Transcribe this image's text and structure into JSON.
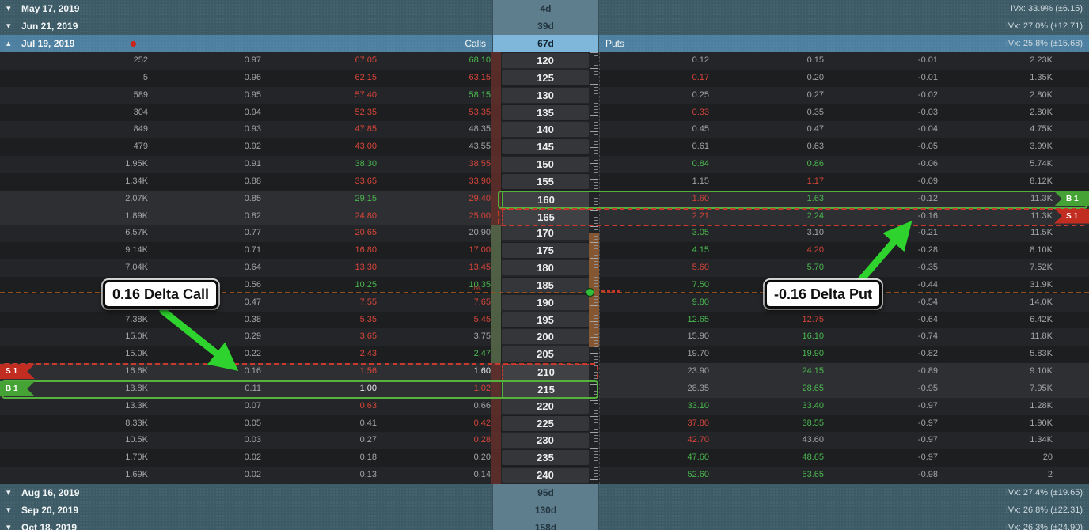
{
  "expirations": [
    {
      "date": "May 17, 2019",
      "days": "4d",
      "ivx": "IVx: 33.9% (±6.15)",
      "expanded": false
    },
    {
      "date": "Jun 21, 2019",
      "days": "39d",
      "ivx": "IVx: 27.0% (±12.71)",
      "expanded": false
    },
    {
      "date": "Jul 19, 2019",
      "days": "67d",
      "ivx": "IVx: 25.8% (±15.68)",
      "expanded": true,
      "calls_label": "Calls",
      "puts_label": "Puts"
    },
    {
      "date": "Aug 16, 2019",
      "days": "95d",
      "ivx": "IVx: 27.4% (±19.65)",
      "expanded": false
    },
    {
      "date": "Sep 20, 2019",
      "days": "130d",
      "ivx": "IVx: 26.8% (±22.31)",
      "expanded": false
    },
    {
      "date": "Oct 18, 2019",
      "days": "158d",
      "ivx": "IVx: 26.3% (±24.90)",
      "expanded": false,
      "partial": true
    }
  ],
  "badges": {
    "buy": "B 1",
    "sell": "S 1"
  },
  "annotations": {
    "call": "0.16 Delta Call",
    "put": "-0.16 Delta Put"
  },
  "price_marker": {
    "change_label": "0%"
  },
  "colors": {
    "text_red": "#d6453a",
    "text_green": "#4ab84f",
    "text_gray": "#a2a4a6",
    "text_white": "#e9eaeb",
    "outline_buy": "#55b23c",
    "outline_sell": "#c93a2e",
    "badge_buy": "#45a335",
    "badge_sell": "#c22d22",
    "header_blue": "#4d80a0",
    "header_teal": "#3d5b67",
    "days_cell_active": "#7fb7da",
    "separator": "#4f8eb0",
    "price_line": "#a0541f",
    "em_strip_in": "#5d6f4c",
    "em_strip_out": "#66302a",
    "ruler_fill": "#8a5a33",
    "arrow_green": "#2ed32e"
  },
  "chain": {
    "em_strike_min": 170,
    "em_strike_max": 205,
    "rows": [
      {
        "strike": "120",
        "call": {
          "vol": "252",
          "delta": "0.97",
          "bid": "67.05",
          "ask": "68.10",
          "bid_c": "r",
          "ask_c": "g"
        },
        "put": {
          "bid": "0.12",
          "ask": "0.15",
          "delta": "-0.01",
          "vol": "2.23K",
          "bid_c": "w",
          "ask_c": "w"
        }
      },
      {
        "strike": "125",
        "call": {
          "vol": "5",
          "delta": "0.96",
          "bid": "62.15",
          "ask": "63.15",
          "bid_c": "r",
          "ask_c": "r"
        },
        "put": {
          "bid": "0.17",
          "ask": "0.20",
          "delta": "-0.01",
          "vol": "1.35K",
          "bid_c": "r",
          "ask_c": "w"
        }
      },
      {
        "strike": "130",
        "call": {
          "vol": "589",
          "delta": "0.95",
          "bid": "57.40",
          "ask": "58.15",
          "bid_c": "r",
          "ask_c": "g"
        },
        "put": {
          "bid": "0.25",
          "ask": "0.27",
          "delta": "-0.02",
          "vol": "2.80K",
          "bid_c": "w",
          "ask_c": "w"
        }
      },
      {
        "strike": "135",
        "call": {
          "vol": "304",
          "delta": "0.94",
          "bid": "52.35",
          "ask": "53.35",
          "bid_c": "r",
          "ask_c": "r"
        },
        "put": {
          "bid": "0.33",
          "ask": "0.35",
          "delta": "-0.03",
          "vol": "2.80K",
          "bid_c": "r",
          "ask_c": "w"
        }
      },
      {
        "strike": "140",
        "call": {
          "vol": "849",
          "delta": "0.93",
          "bid": "47.85",
          "ask": "48.35",
          "bid_c": "r",
          "ask_c": "w"
        },
        "put": {
          "bid": "0.45",
          "ask": "0.47",
          "delta": "-0.04",
          "vol": "4.75K",
          "bid_c": "w",
          "ask_c": "w"
        }
      },
      {
        "strike": "145",
        "call": {
          "vol": "479",
          "delta": "0.92",
          "bid": "43.00",
          "ask": "43.55",
          "bid_c": "r",
          "ask_c": "w"
        },
        "put": {
          "bid": "0.61",
          "ask": "0.63",
          "delta": "-0.05",
          "vol": "3.99K",
          "bid_c": "w",
          "ask_c": "w"
        },
        "sep": true
      },
      {
        "strike": "150",
        "call": {
          "vol": "1.95K",
          "delta": "0.91",
          "bid": "38.30",
          "ask": "38.55",
          "bid_c": "g",
          "ask_c": "r"
        },
        "put": {
          "bid": "0.84",
          "ask": "0.86",
          "delta": "-0.06",
          "vol": "5.74K",
          "bid_c": "g",
          "ask_c": "g"
        }
      },
      {
        "strike": "155",
        "call": {
          "vol": "1.34K",
          "delta": "0.88",
          "bid": "33.65",
          "ask": "33.90",
          "bid_c": "r",
          "ask_c": "r"
        },
        "put": {
          "bid": "1.15",
          "ask": "1.17",
          "delta": "-0.09",
          "vol": "8.12K",
          "bid_c": "w",
          "ask_c": "r"
        }
      },
      {
        "strike": "160",
        "call": {
          "vol": "2.07K",
          "delta": "0.85",
          "bid": "29.15",
          "ask": "29.40",
          "bid_c": "g",
          "ask_c": "r"
        },
        "put": {
          "bid": "1.60",
          "ask": "1.63",
          "delta": "-0.12",
          "vol": "11.3K",
          "bid_c": "r",
          "ask_c": "g"
        },
        "trade": {
          "side": "put",
          "action": "buy"
        }
      },
      {
        "strike": "165",
        "call": {
          "vol": "1.89K",
          "delta": "0.82",
          "bid": "24.80",
          "ask": "25.00",
          "bid_c": "r",
          "ask_c": "r"
        },
        "put": {
          "bid": "2.21",
          "ask": "2.24",
          "delta": "-0.16",
          "vol": "11.3K",
          "bid_c": "r",
          "ask_c": "g"
        },
        "trade": {
          "side": "put",
          "action": "sell"
        },
        "sep": true
      },
      {
        "strike": "170",
        "call": {
          "vol": "6.57K",
          "delta": "0.77",
          "bid": "20.65",
          "ask": "20.90",
          "bid_c": "r",
          "ask_c": "w"
        },
        "put": {
          "bid": "3.05",
          "ask": "3.10",
          "delta": "-0.21",
          "vol": "11.5K",
          "bid_c": "g",
          "ask_c": "w"
        }
      },
      {
        "strike": "175",
        "call": {
          "vol": "9.14K",
          "delta": "0.71",
          "bid": "16.80",
          "ask": "17.00",
          "bid_c": "r",
          "ask_c": "r"
        },
        "put": {
          "bid": "4.15",
          "ask": "4.20",
          "delta": "-0.28",
          "vol": "8.10K",
          "bid_c": "g",
          "ask_c": "r"
        }
      },
      {
        "strike": "180",
        "call": {
          "vol": "7.04K",
          "delta": "0.64",
          "bid": "13.30",
          "ask": "13.45",
          "bid_c": "r",
          "ask_c": "r"
        },
        "put": {
          "bid": "5.60",
          "ask": "5.70",
          "delta": "-0.35",
          "vol": "7.52K",
          "bid_c": "r",
          "ask_c": "g"
        }
      },
      {
        "strike": "185",
        "call": {
          "vol": "",
          "delta": "0.56",
          "bid": "10.25",
          "ask": "10.35",
          "bid_c": "g",
          "ask_c": "g"
        },
        "put": {
          "bid": "7.50",
          "ask": "",
          "delta": "-0.44",
          "vol": "31.9K",
          "bid_c": "g",
          "ask_c": "w"
        }
      },
      {
        "strike": "190",
        "call": {
          "vol": "",
          "delta": "0.47",
          "bid": "7.55",
          "ask": "7.65",
          "bid_c": "r",
          "ask_c": "r"
        },
        "put": {
          "bid": "9.80",
          "ask": "",
          "delta": "-0.54",
          "vol": "14.0K",
          "bid_c": "g",
          "ask_c": "w"
        }
      },
      {
        "strike": "195",
        "call": {
          "vol": "7.38K",
          "delta": "0.38",
          "bid": "5.35",
          "ask": "5.45",
          "bid_c": "r",
          "ask_c": "r"
        },
        "put": {
          "bid": "12.65",
          "ask": "12.75",
          "delta": "-0.64",
          "vol": "6.42K",
          "bid_c": "g",
          "ask_c": "r"
        }
      },
      {
        "strike": "200",
        "call": {
          "vol": "15.0K",
          "delta": "0.29",
          "bid": "3.65",
          "ask": "3.75",
          "bid_c": "r",
          "ask_c": "w"
        },
        "put": {
          "bid": "15.90",
          "ask": "16.10",
          "delta": "-0.74",
          "vol": "11.8K",
          "bid_c": "w",
          "ask_c": "g"
        }
      },
      {
        "strike": "205",
        "call": {
          "vol": "15.0K",
          "delta": "0.22",
          "bid": "2.43",
          "ask": "2.47",
          "bid_c": "r",
          "ask_c": "g"
        },
        "put": {
          "bid": "19.70",
          "ask": "19.90",
          "delta": "-0.82",
          "vol": "5.83K",
          "bid_c": "w",
          "ask_c": "g"
        },
        "sep": true
      },
      {
        "strike": "210",
        "call": {
          "vol": "16.6K",
          "delta": "0.16",
          "bid": "1.56",
          "ask": "1.60",
          "bid_c": "r",
          "ask_c": "W"
        },
        "put": {
          "bid": "23.90",
          "ask": "24.15",
          "delta": "-0.89",
          "vol": "9.10K",
          "bid_c": "w",
          "ask_c": "g"
        },
        "trade": {
          "side": "call",
          "action": "sell"
        }
      },
      {
        "strike": "215",
        "call": {
          "vol": "13.8K",
          "delta": "0.11",
          "bid": "1.00",
          "ask": "1.02",
          "bid_c": "W",
          "ask_c": "r"
        },
        "put": {
          "bid": "28.35",
          "ask": "28.65",
          "delta": "-0.95",
          "vol": "7.95K",
          "bid_c": "w",
          "ask_c": "g"
        },
        "trade": {
          "side": "call",
          "action": "buy"
        }
      },
      {
        "strike": "220",
        "call": {
          "vol": "13.3K",
          "delta": "0.07",
          "bid": "0.63",
          "ask": "0.66",
          "bid_c": "r",
          "ask_c": "w"
        },
        "put": {
          "bid": "33.10",
          "ask": "33.40",
          "delta": "-0.97",
          "vol": "1.28K",
          "bid_c": "g",
          "ask_c": "g"
        }
      },
      {
        "strike": "225",
        "call": {
          "vol": "8.33K",
          "delta": "0.05",
          "bid": "0.41",
          "ask": "0.42",
          "bid_c": "w",
          "ask_c": "r"
        },
        "put": {
          "bid": "37.80",
          "ask": "38.55",
          "delta": "-0.97",
          "vol": "1.90K",
          "bid_c": "r",
          "ask_c": "g"
        },
        "sep": true
      },
      {
        "strike": "230",
        "call": {
          "vol": "10.5K",
          "delta": "0.03",
          "bid": "0.27",
          "ask": "0.28",
          "bid_c": "w",
          "ask_c": "r"
        },
        "put": {
          "bid": "42.70",
          "ask": "43.60",
          "delta": "-0.97",
          "vol": "1.34K",
          "bid_c": "r",
          "ask_c": "w"
        }
      },
      {
        "strike": "235",
        "call": {
          "vol": "1.70K",
          "delta": "0.02",
          "bid": "0.18",
          "ask": "0.20",
          "bid_c": "w",
          "ask_c": "w"
        },
        "put": {
          "bid": "47.60",
          "ask": "48.65",
          "delta": "-0.97",
          "vol": "20",
          "bid_c": "g",
          "ask_c": "g"
        }
      },
      {
        "strike": "240",
        "call": {
          "vol": "1.69K",
          "delta": "0.02",
          "bid": "0.13",
          "ask": "0.14",
          "bid_c": "w",
          "ask_c": "w"
        },
        "put": {
          "bid": "52.60",
          "ask": "53.65",
          "delta": "-0.98",
          "vol": "2",
          "bid_c": "g",
          "ask_c": "g"
        }
      }
    ]
  }
}
